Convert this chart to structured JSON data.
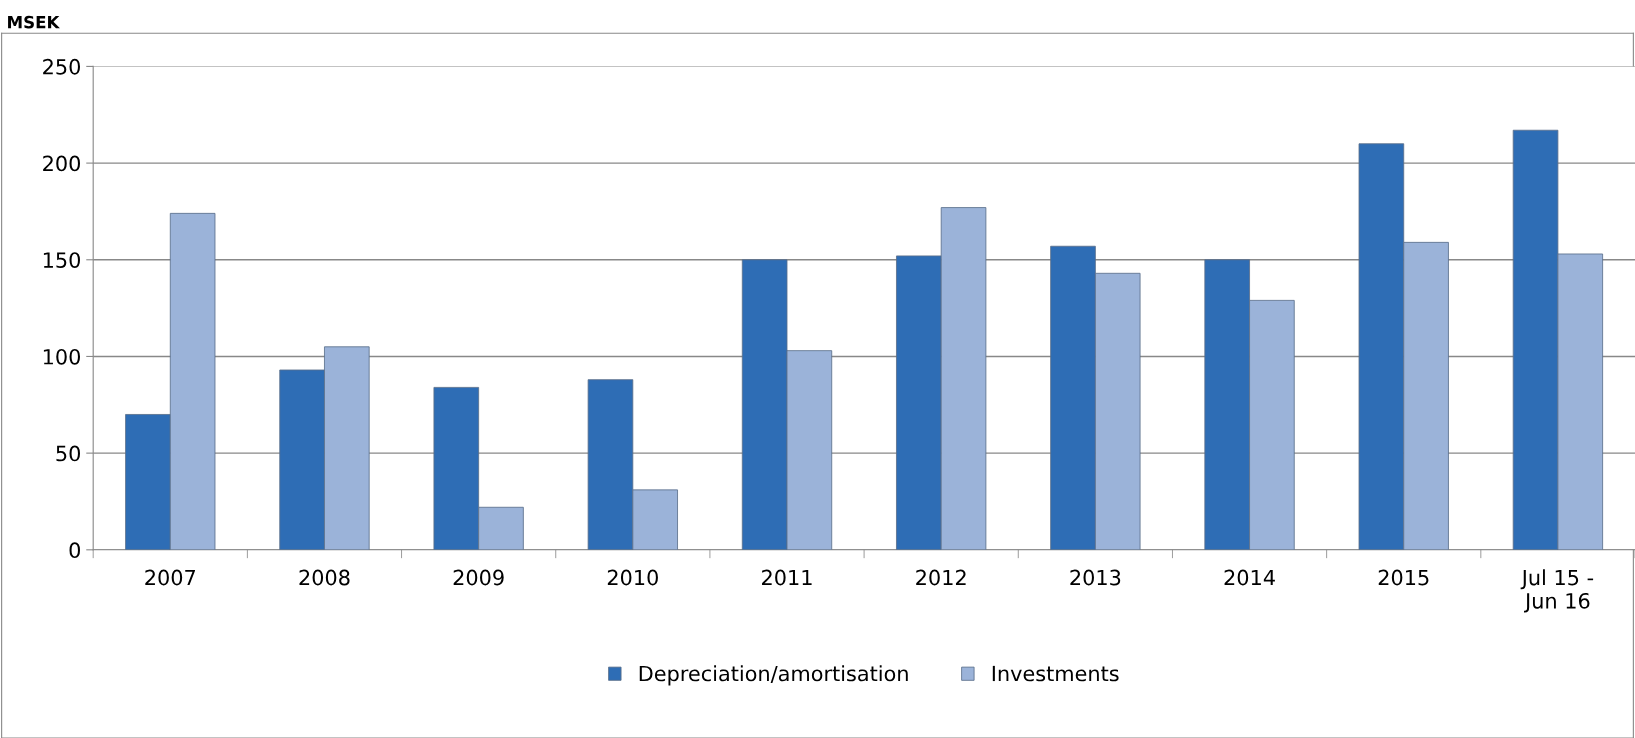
{
  "chart_data": {
    "type": "bar",
    "ylabel": "MSEK",
    "categories": [
      "2007",
      "2008",
      "2009",
      "2010",
      "2011",
      "2012",
      "2013",
      "2014",
      "2015",
      "Jul 15 -\nJun 16"
    ],
    "series": [
      {
        "name": "Depreciation/amortisation",
        "color": "#2e6db5",
        "values": [
          70,
          93,
          84,
          88,
          150,
          152,
          157,
          150,
          210,
          217
        ]
      },
      {
        "name": "Investments",
        "color": "#9bb3d9",
        "values": [
          174,
          105,
          22,
          31,
          103,
          177,
          143,
          129,
          159,
          153
        ]
      }
    ],
    "ylim": [
      0,
      250
    ],
    "yticks": [
      0,
      50,
      100,
      150,
      200,
      250
    ],
    "grid": "y",
    "legend": "bottom"
  }
}
